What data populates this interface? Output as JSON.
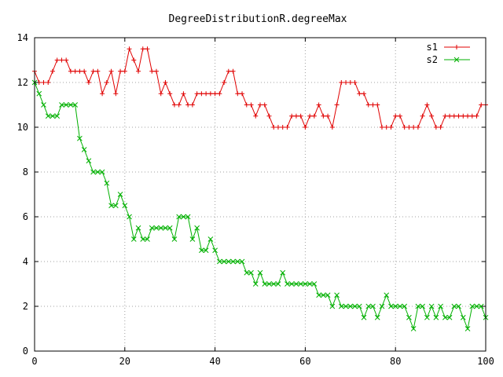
{
  "chart_data": {
    "type": "line",
    "title": "DegreeDistributionR.degreeMax",
    "xlabel": "",
    "ylabel": "",
    "xlim": [
      0,
      100
    ],
    "ylim": [
      0,
      14
    ],
    "xticks": [
      0,
      20,
      40,
      60,
      80,
      100
    ],
    "yticks": [
      0,
      2,
      4,
      6,
      8,
      10,
      12,
      14
    ],
    "grid": true,
    "legend_position": "top-right",
    "x": [
      0,
      1,
      2,
      3,
      4,
      5,
      6,
      7,
      8,
      9,
      10,
      11,
      12,
      13,
      14,
      15,
      16,
      17,
      18,
      19,
      20,
      21,
      22,
      23,
      24,
      25,
      26,
      27,
      28,
      29,
      30,
      31,
      32,
      33,
      34,
      35,
      36,
      37,
      38,
      39,
      40,
      41,
      42,
      43,
      44,
      45,
      46,
      47,
      48,
      49,
      50,
      51,
      52,
      53,
      54,
      55,
      56,
      57,
      58,
      59,
      60,
      61,
      62,
      63,
      64,
      65,
      66,
      67,
      68,
      69,
      70,
      71,
      72,
      73,
      74,
      75,
      76,
      77,
      78,
      79,
      80,
      81,
      82,
      83,
      84,
      85,
      86,
      87,
      88,
      89,
      90,
      91,
      92,
      93,
      94,
      95,
      96,
      97,
      98,
      99,
      100
    ],
    "series": [
      {
        "name": "s1",
        "color": "#e00000",
        "marker": "plus",
        "values": [
          12.5,
          12,
          12,
          12,
          12.5,
          13,
          13,
          13,
          12.5,
          12.5,
          12.5,
          12.5,
          12,
          12.5,
          12.5,
          11.5,
          12,
          12.5,
          11.5,
          12.5,
          12.5,
          13.5,
          13,
          12.5,
          13.5,
          13.5,
          12.5,
          12.5,
          11.5,
          12,
          11.5,
          11,
          11,
          11.5,
          11,
          11,
          11.5,
          11.5,
          11.5,
          11.5,
          11.5,
          11.5,
          12,
          12.5,
          12.5,
          11.5,
          11.5,
          11,
          11,
          10.5,
          11,
          11,
          10.5,
          10,
          10,
          10,
          10,
          10.5,
          10.5,
          10.5,
          10,
          10.5,
          10.5,
          11,
          10.5,
          10.5,
          10,
          11,
          12,
          12,
          12,
          12,
          11.5,
          11.5,
          11,
          11,
          11,
          10,
          10,
          10,
          10.5,
          10.5,
          10,
          10,
          10,
          10,
          10.5,
          11,
          10.5,
          10,
          10,
          10.5,
          10.5,
          10.5,
          10.5,
          10.5,
          10.5,
          10.5,
          10.5,
          11,
          11
        ]
      },
      {
        "name": "s2",
        "color": "#00b000",
        "marker": "cross",
        "values": [
          12,
          11.5,
          11,
          10.5,
          10.5,
          10.5,
          11,
          11,
          11,
          11,
          9.5,
          9,
          8.5,
          8,
          8,
          8,
          7.5,
          6.5,
          6.5,
          7,
          6.5,
          6,
          5,
          5.5,
          5,
          5,
          5.5,
          5.5,
          5.5,
          5.5,
          5.5,
          5,
          6,
          6,
          6,
          5,
          5.5,
          4.5,
          4.5,
          5,
          4.5,
          4,
          4,
          4,
          4,
          4,
          4,
          3.5,
          3.5,
          3,
          3.5,
          3,
          3,
          3,
          3,
          3.5,
          3,
          3,
          3,
          3,
          3,
          3,
          3,
          2.5,
          2.5,
          2.5,
          2,
          2.5,
          2,
          2,
          2,
          2,
          2,
          1.5,
          2,
          2,
          1.5,
          2,
          2.5,
          2,
          2,
          2,
          2,
          1.5,
          1,
          2,
          2,
          1.5,
          2,
          1.5,
          2,
          1.5,
          1.5,
          2,
          2,
          1.5,
          1,
          2,
          2,
          2,
          1.5
        ]
      }
    ]
  }
}
